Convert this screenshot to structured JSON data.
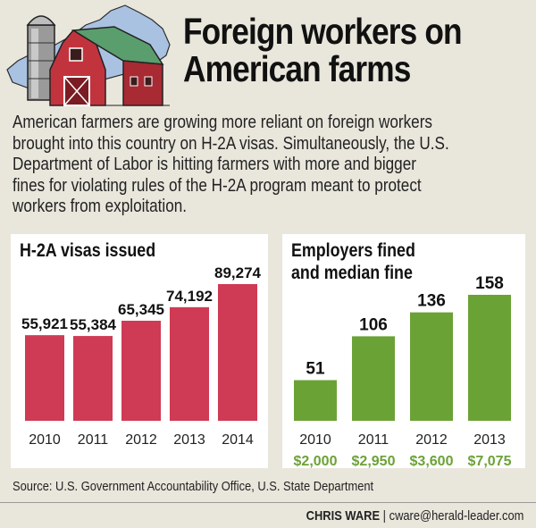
{
  "title_lines": [
    "Foreign workers on",
    "American farms"
  ],
  "intro_lines": [
    "American farmers are growing more reliant on foreign workers",
    "brought into this country on H-2A visas. Simultaneously, the U.S.",
    "Department of Labor is hitting farmers with more and bigger",
    "fines for violating rules of the H-2A program meant to protect",
    "workers from exploitation."
  ],
  "chart_data": [
    {
      "type": "bar",
      "title": "H-2A visas issued",
      "categories": [
        "2010",
        "2011",
        "2012",
        "2013",
        "2014"
      ],
      "values": [
        55921,
        55384,
        65345,
        74192,
        89274
      ],
      "value_labels": [
        "55,921",
        "55,384",
        "65,345",
        "74,192",
        "89,274"
      ],
      "ylim": [
        0,
        89274
      ],
      "color": "#cf3a54"
    },
    {
      "type": "bar",
      "title_lines": [
        "Employers fined",
        "and median fine"
      ],
      "categories": [
        "2010",
        "2011",
        "2012",
        "2013"
      ],
      "values": [
        51,
        106,
        136,
        158
      ],
      "value_labels": [
        "51",
        "106",
        "136",
        "158"
      ],
      "median_fine_labels": [
        "$2,000",
        "$2,950",
        "$3,600",
        "$7,075"
      ],
      "median_fine": [
        2000,
        2950,
        3600,
        7075
      ],
      "ylim": [
        0,
        158
      ],
      "color": "#6ba236"
    }
  ],
  "source": "Source: U.S. Government Accountability Office, U.S. State Department",
  "credit": {
    "name": "CHRIS WARE",
    "separator": " | ",
    "email": "cware@herald-leader.com"
  },
  "colors": {
    "background": "#e9e6dc",
    "barn_red": "#c2343d",
    "roof_green": "#5a9e6e",
    "state_blue": "#a9c2e2",
    "silo_gray": "#9a9a9a"
  }
}
